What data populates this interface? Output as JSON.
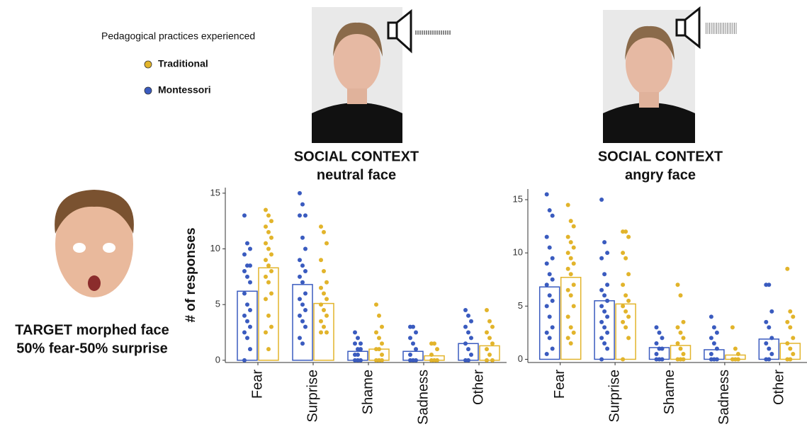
{
  "legend_title": "Pedagogical practices experienced",
  "target_label": [
    "TARGET morphed face",
    "50% fear-50% surprise"
  ],
  "chart_data": [
    {
      "type": "bar",
      "title": "SOCIAL CONTEXT",
      "subtitle": "neutral face",
      "y_label": "# of responses",
      "categories": [
        "Fear",
        "Surprise",
        "Shame",
        "Sadness",
        "Other"
      ],
      "ylim": [
        -0.2,
        15.5
      ],
      "yticks": [
        0,
        5,
        10,
        15
      ],
      "series": [
        {
          "name": "Montessori",
          "color": "#3a5bbf",
          "values": [
            6.2,
            6.8,
            0.8,
            0.8,
            1.5
          ],
          "points": [
            [
              13,
              10.5,
              10,
              9.5,
              8.5,
              8.5,
              8,
              7.5,
              7,
              6,
              5,
              4.5,
              4,
              3.5,
              3,
              2.5,
              2,
              1,
              0
            ],
            [
              15,
              14,
              13,
              13,
              11,
              10,
              9,
              8.5,
              8,
              7.5,
              7,
              6,
              5.5,
              5,
              4.5,
              4,
              3.5,
              3,
              2,
              1.5
            ],
            [
              2.5,
              2,
              1.5,
              1.5,
              1,
              1,
              0.5,
              0.5,
              0,
              0,
              0
            ],
            [
              3,
              3,
              2.5,
              2,
              1.5,
              1,
              0.5,
              0,
              0,
              0
            ],
            [
              4.5,
              4,
              3.5,
              3,
              2.5,
              2,
              1.5,
              1,
              0.5,
              0,
              0
            ]
          ]
        },
        {
          "name": "Traditional",
          "color": "#e2b42b",
          "values": [
            8.3,
            5.1,
            1.0,
            0.4,
            1.3
          ],
          "points": [
            [
              13.5,
              13,
              12.5,
              12,
              11.5,
              11,
              10.5,
              10,
              9.5,
              9,
              8.5,
              8,
              7.5,
              7,
              6,
              5.5,
              4,
              3,
              2.5,
              1
            ],
            [
              12,
              11.5,
              10.5,
              9,
              8,
              7,
              6.5,
              6,
              5.5,
              5,
              4.5,
              4,
              3.5,
              3,
              2.5,
              2.5
            ],
            [
              5,
              4,
              3,
              2.5,
              2,
              1.5,
              1,
              1,
              0.5,
              0,
              0,
              0
            ],
            [
              1.5,
              1.5,
              1,
              0.5,
              0,
              0,
              0
            ],
            [
              4.5,
              3.5,
              3,
              2.5,
              2,
              1.5,
              1,
              0.5,
              0,
              0
            ]
          ]
        }
      ]
    },
    {
      "type": "bar",
      "title": "SOCIAL CONTEXT",
      "subtitle": "angry face",
      "categories": [
        "Fear",
        "Surprise",
        "Shame",
        "Sadness",
        "Other"
      ],
      "ylim": [
        -0.3,
        16
      ],
      "yticks": [
        0,
        5,
        10,
        15
      ],
      "series": [
        {
          "name": "Montessori",
          "color": "#3a5bbf",
          "values": [
            6.8,
            5.5,
            1.1,
            0.9,
            1.9
          ],
          "points": [
            [
              15.5,
              14,
              13.5,
              11.5,
              10.5,
              9.5,
              9,
              8,
              7.5,
              7,
              6,
              5.5,
              5,
              4,
              3,
              2.5,
              2,
              1,
              0.5
            ],
            [
              15,
              11,
              10,
              9.5,
              8,
              7,
              6.5,
              6,
              5.5,
              5,
              4.5,
              4,
              3.5,
              3,
              2.5,
              2,
              1.5,
              1,
              0
            ],
            [
              3,
              2.5,
              2,
              1.5,
              1,
              1,
              0.5,
              0,
              0,
              0
            ],
            [
              4,
              3,
              2.5,
              2,
              1.5,
              1,
              0.5,
              0,
              0,
              0
            ],
            [
              7,
              7,
              4.5,
              3.5,
              3,
              2,
              1.5,
              1,
              0.5,
              0,
              0
            ]
          ]
        },
        {
          "name": "Traditional",
          "color": "#e2b42b",
          "values": [
            7.7,
            5.2,
            1.3,
            0.4,
            1.5
          ],
          "points": [
            [
              14.5,
              13,
              12.5,
              11.5,
              11,
              10.5,
              10,
              9.5,
              9,
              8.5,
              8,
              7,
              6.5,
              6,
              5,
              4,
              3,
              2.5,
              2,
              1.5
            ],
            [
              12,
              12,
              11.5,
              10,
              9.5,
              8,
              7,
              6,
              5.5,
              5,
              4.5,
              4,
              3.5,
              3,
              2,
              0
            ],
            [
              7,
              6,
              3.5,
              3,
              2.5,
              2,
              1.5,
              1,
              0.5,
              0,
              0,
              0
            ],
            [
              3,
              1,
              0.5,
              0,
              0,
              0
            ],
            [
              8.5,
              4.5,
              4,
              3.5,
              3,
              2,
              1.5,
              1,
              0.5,
              0,
              0
            ]
          ]
        }
      ]
    }
  ]
}
